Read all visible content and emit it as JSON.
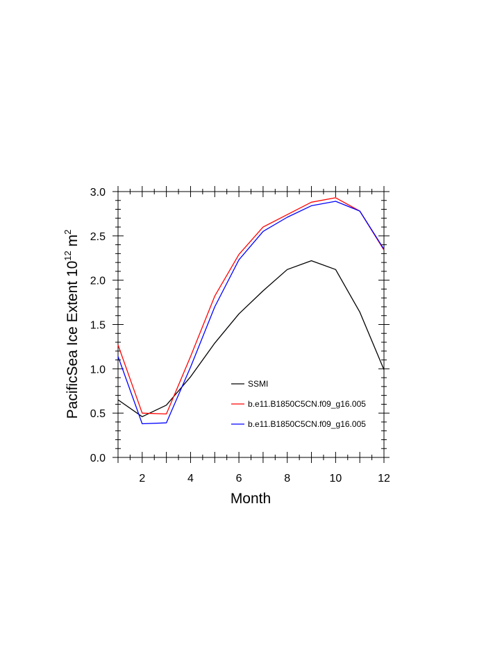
{
  "chart_data": {
    "type": "line",
    "xlabel": "Month",
    "ylabel_main": "PacificSea Ice Extent 10",
    "ylabel_sup": "12",
    "ylabel_unit": " m",
    "ylabel_unit_sup": "2",
    "xlim": [
      1,
      12
    ],
    "ylim": [
      0,
      3
    ],
    "x_ticks": [
      2,
      4,
      6,
      8,
      10,
      12
    ],
    "y_ticks": [
      0.0,
      0.5,
      1.0,
      1.5,
      2.0,
      2.5,
      3.0
    ],
    "y_tick_labels": [
      "0.0",
      "0.5",
      "1.0",
      "1.5",
      "2.0",
      "2.5",
      "3.0"
    ],
    "x_tick_labels": [
      "2",
      "4",
      "6",
      "8",
      "10",
      "12"
    ],
    "grid": false,
    "legend_position": "lower-right",
    "x": [
      1,
      2,
      3,
      4,
      5,
      6,
      7,
      8,
      9,
      10,
      11,
      12
    ],
    "series": [
      {
        "name": "SSMI",
        "color": "#000000",
        "values": [
          0.65,
          0.46,
          0.59,
          0.91,
          1.29,
          1.62,
          1.88,
          2.12,
          2.22,
          2.12,
          1.64,
          0.99
        ]
      },
      {
        "name": "b.e11.B1850C5CN.f09_g16.005",
        "color": "#ff0000",
        "values": [
          1.27,
          0.5,
          0.49,
          1.14,
          1.82,
          2.29,
          2.6,
          2.74,
          2.88,
          2.93,
          2.78,
          2.34
        ]
      },
      {
        "name": "b.e11.B1850C5CN.f09_g16.005",
        "color": "#0000ff",
        "values": [
          1.14,
          0.38,
          0.39,
          1.02,
          1.7,
          2.23,
          2.55,
          2.71,
          2.84,
          2.89,
          2.78,
          2.35
        ]
      }
    ]
  }
}
